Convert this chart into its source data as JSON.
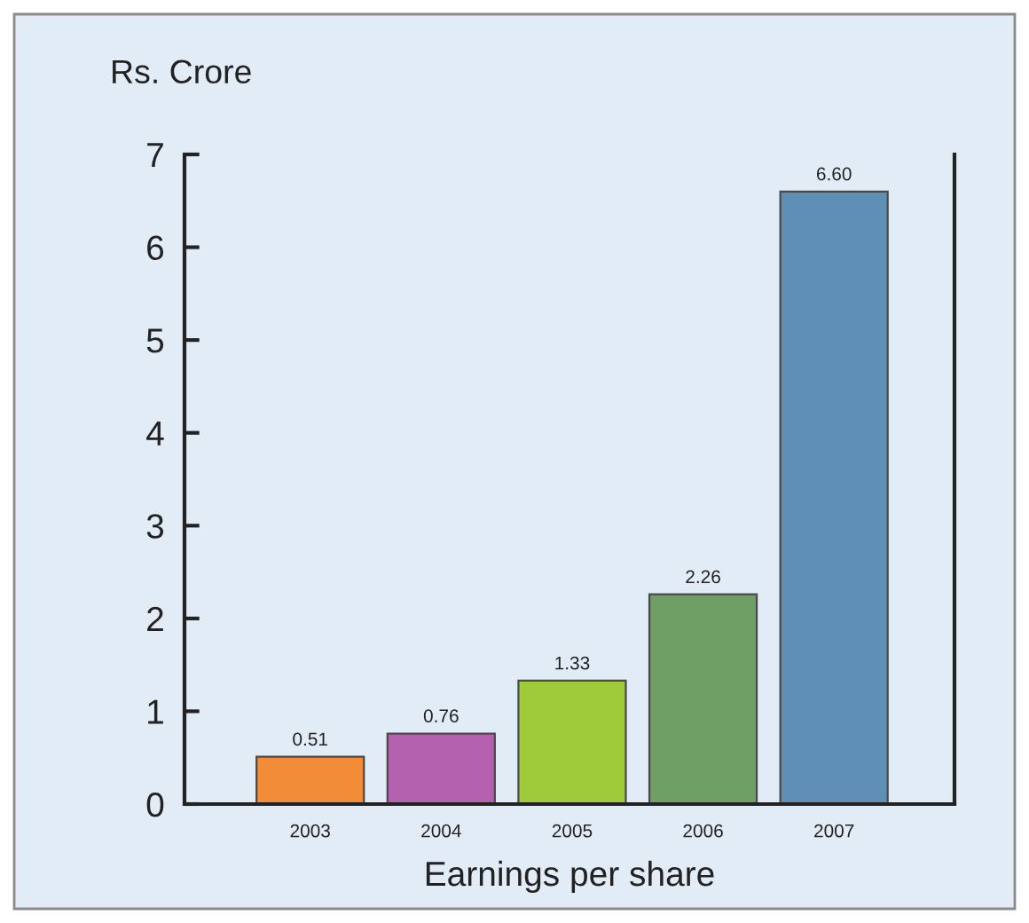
{
  "chart_data": {
    "type": "bar",
    "ylabel": "Rs. Crore",
    "xlabel": "Earnings per share",
    "categories": [
      "2003",
      "2004",
      "2005",
      "2006",
      "2007"
    ],
    "values": [
      0.51,
      0.76,
      1.33,
      2.26,
      6.6
    ],
    "colors": [
      "#f28c38",
      "#b462b0",
      "#9fcb3a",
      "#6f9f64",
      "#5f8fb5"
    ],
    "value_labels": [
      "0.51",
      "0.76",
      "1.33",
      "2.26",
      "6.60"
    ],
    "ylim": [
      0,
      7
    ],
    "yticks": [
      0,
      1,
      2,
      3,
      4,
      5,
      6,
      7
    ],
    "grid": false,
    "legend": false
  }
}
